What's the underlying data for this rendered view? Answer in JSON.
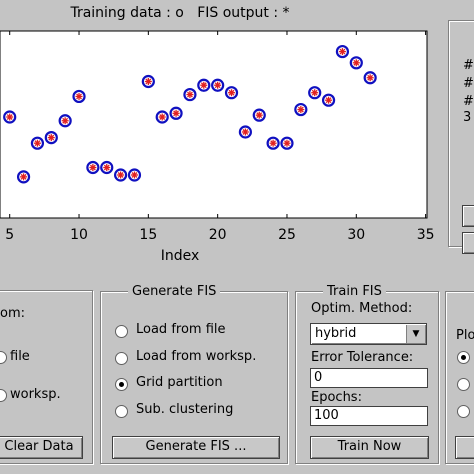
{
  "chart_data": {
    "type": "scatter",
    "title": "Training data : o   FIS output : *",
    "x_label": "Index",
    "x": [
      5,
      6,
      7,
      8,
      9,
      10,
      11,
      12,
      13,
      14,
      15,
      16,
      17,
      18,
      19,
      20,
      21,
      22,
      23,
      24,
      25,
      26,
      27,
      28,
      29,
      30,
      31
    ],
    "values": [
      0.54,
      0.22,
      0.4,
      0.43,
      0.52,
      0.65,
      0.27,
      0.27,
      0.23,
      0.23,
      0.73,
      0.54,
      0.56,
      0.66,
      0.71,
      0.71,
      0.67,
      0.46,
      0.55,
      0.4,
      0.4,
      0.58,
      0.67,
      0.63,
      0.89,
      0.83,
      0.75
    ],
    "color": "#1010c0",
    "marker_color": "#e02020",
    "xlim": [
      4.3,
      35.1
    ],
    "xticks": [
      5,
      10,
      15,
      20,
      25,
      30,
      35
    ],
    "ylim": [
      0,
      1
    ]
  },
  "right_info": [
    "#",
    "#",
    "#",
    "3"
  ],
  "load_panel": {
    "title": "om:",
    "options": [
      "file",
      "worksp."
    ],
    "button": "Clear Data"
  },
  "generate_panel": {
    "title": "Generate FIS",
    "options": [
      "Load from file",
      "Load from worksp.",
      "Grid partition",
      "Sub. clustering"
    ],
    "selected": 2,
    "button": "Generate FIS ..."
  },
  "train_panel": {
    "title": "Train FIS",
    "method_label": "Optim. Method:",
    "method": "hybrid",
    "tolerance_label": "Error Tolerance:",
    "tolerance": "0",
    "epochs_label": "Epochs:",
    "epochs": "100",
    "button": "Train Now"
  },
  "test_panel": {
    "title": "Plo"
  }
}
